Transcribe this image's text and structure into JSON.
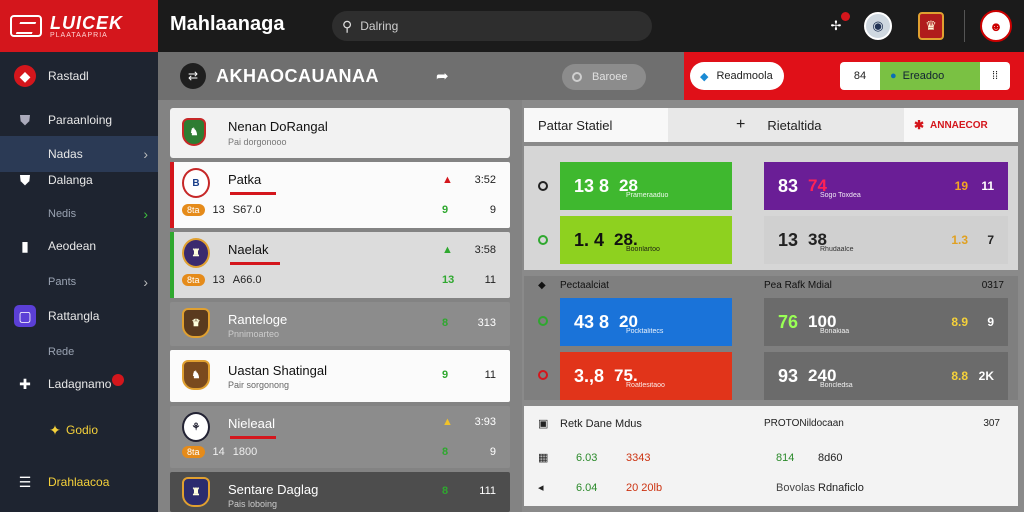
{
  "brand": {
    "title": "LUICEK",
    "subtitle": "PLAATAAPRIA"
  },
  "header": {
    "app_title": "Mahlaanaga",
    "search_placeholder": "Dalring",
    "icons": [
      "share-icon",
      "club-badge-icon",
      "team-crest-icon",
      "profile-icon"
    ]
  },
  "sidebar": {
    "items": [
      {
        "label": "Rastadl",
        "icon": "flame-icon"
      },
      {
        "label": "Paraanloing",
        "icon": "shield-icon"
      },
      {
        "label": "Nadas",
        "active": true
      },
      {
        "label": "Dalanga",
        "icon": "shield-icon"
      },
      {
        "label": "Nedis"
      },
      {
        "label": "Aeodean",
        "icon": "book-icon"
      },
      {
        "label": "Pants"
      },
      {
        "label": "Rattangla",
        "icon": "chat-icon"
      },
      {
        "label": "Rede"
      },
      {
        "label": "Ladagnamo",
        "icon": "trophy-icon"
      },
      {
        "label": "Godio",
        "icon": "flash-icon"
      },
      {
        "label": "Drahlaacoa",
        "icon": "list-icon"
      }
    ]
  },
  "titlebar": {
    "title": "AKHAOCAUANAA",
    "pill": "Baroee",
    "red_button": "Readmoola",
    "group_num": "84",
    "group_label": "Ereadoo"
  },
  "team_header": {
    "name": "Nenan DoRangal",
    "sub": "Pai dorgonooo"
  },
  "rows": [
    {
      "name": "Patka",
      "pill": "8ta",
      "a": "13",
      "b": "S67.0",
      "mid": "9",
      "arrow": "▲",
      "val_top": "3:52",
      "val": "9"
    },
    {
      "name": "Naelak",
      "pill": "8ta",
      "a": "13",
      "b": "A66.0",
      "mid": "13",
      "arrow": "▲",
      "val_top": "3:58",
      "val": "11"
    },
    {
      "name": "Ranteloge",
      "sub": "Pnnimoarteo",
      "mid": "8",
      "val": "313"
    },
    {
      "name": "Uastan Shatingal",
      "sub": "Pair sorgonong",
      "mid": "9",
      "val": "11"
    },
    {
      "name": "Nieleaal",
      "pill": "8ta",
      "a": "14",
      "b": "1800",
      "mid": "8",
      "arrow": "▲",
      "val_top": "3:93",
      "val": "9"
    },
    {
      "name": "Sentare Daglag",
      "sub": "Pais loboing",
      "mid": "8",
      "val": "111"
    }
  ],
  "tabs": {
    "tab1": "Pattar Statiel",
    "tab2": "Rietaltida",
    "tab3": "ANNAECOR"
  },
  "scores": {
    "group1_title": "Pectaalciat",
    "group2_title": "Pea Rafk Mdial",
    "group2_right": "0317",
    "tiles": [
      {
        "big": "13 8",
        "small": "28",
        "sub": "Prameraaduo"
      },
      {
        "big": "1. 4",
        "small": "28.",
        "sub": "Boonlartoo"
      },
      {
        "big": "43 8",
        "small": "20",
        "sub": "Pocktalitecs"
      },
      {
        "big": "3.,8",
        "small": "75.",
        "sub": "Roatlesitaoo"
      }
    ],
    "right_tiles": [
      {
        "big": "83",
        "small": "74",
        "sub": "Sogo Toxdea",
        "tn": "19",
        "tn2": "11"
      },
      {
        "big": "13",
        "small": "38",
        "sub": "Rhudaalce",
        "tn": "1.3",
        "tn2": "7"
      },
      {
        "big": "76",
        "small": "100",
        "sub": "Bonakiaa",
        "tn": "8.9",
        "tn2": "9"
      },
      {
        "big": "93",
        "small": "240",
        "sub": "Boncledsa",
        "tn": "8.8",
        "tn2": "2K"
      }
    ]
  },
  "bottom": {
    "title": "Retk Dane Mdus",
    "title2": "PROTONildocaan",
    "right": "307",
    "rows": [
      {
        "c1": "6.03",
        "c2": "3343",
        "c3": "814",
        "c4": "8d60"
      },
      {
        "c1": "6.04",
        "c2": "20 20lb",
        "c3": "Bovolas",
        "c4": "Rdnaficlo"
      }
    ]
  }
}
